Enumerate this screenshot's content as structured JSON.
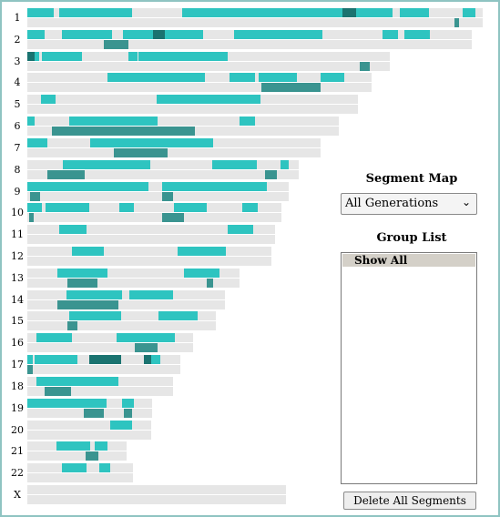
{
  "colors": {
    "primary": "#2ec4c0",
    "secondary": "#3a9490",
    "dark": "#1a7370",
    "track": "#e6e6e6",
    "frame": "#8fc4c2"
  },
  "panel": {
    "segment_map_title": "Segment Map",
    "generation_select": {
      "value": "All Generations"
    },
    "group_list_title": "Group List",
    "group_list_items": [
      "Show All"
    ],
    "delete_button": "Delete All Segments"
  },
  "chromosomes": [
    {
      "label": "1",
      "length": 1.0,
      "top": [
        [
          0.0,
          0.058
        ],
        [
          0.07,
          0.23
        ],
        [
          0.339,
          0.691
        ],
        [
          0.691,
          0.721
        ],
        [
          0.721,
          0.8
        ],
        [
          0.818,
          0.882
        ],
        [
          0.955,
          0.983
        ]
      ],
      "top_dark": [
        [
          0.691,
          0.721
        ]
      ],
      "bottom": [
        [
          0.937,
          0.948
        ]
      ]
    },
    {
      "label": "2",
      "length": 0.975,
      "top": [
        [
          0.0,
          0.037
        ],
        [
          0.075,
          0.185
        ],
        [
          0.21,
          0.275
        ],
        [
          0.275,
          0.302
        ],
        [
          0.302,
          0.386
        ],
        [
          0.453,
          0.647
        ],
        [
          0.78,
          0.815
        ],
        [
          0.827,
          0.882
        ]
      ],
      "top_dark": [
        [
          0.275,
          0.302
        ]
      ],
      "bottom": [
        [
          0.168,
          0.222
        ]
      ]
    },
    {
      "label": "3",
      "length": 0.795,
      "top": [
        [
          0.0,
          0.015
        ],
        [
          0.015,
          0.025
        ],
        [
          0.032,
          0.12
        ],
        [
          0.222,
          0.243
        ],
        [
          0.243,
          0.439
        ]
      ],
      "top_dark": [
        [
          0.0,
          0.015
        ]
      ],
      "bottom": [
        [
          0.73,
          0.752
        ]
      ]
    },
    {
      "label": "4",
      "length": 0.756,
      "top": [
        [
          0.175,
          0.388
        ],
        [
          0.444,
          0.5
        ],
        [
          0.507,
          0.592
        ],
        [
          0.643,
          0.696
        ]
      ],
      "top_dark": [],
      "bottom": [
        [
          0.514,
          0.643
        ]
      ]
    },
    {
      "label": "5",
      "length": 0.725,
      "top": [
        [
          0.03,
          0.061
        ],
        [
          0.284,
          0.512
        ]
      ],
      "top_dark": [],
      "bottom": []
    },
    {
      "label": "6",
      "length": 0.684,
      "top": [
        [
          0.0,
          0.016
        ],
        [
          0.092,
          0.286
        ],
        [
          0.465,
          0.5
        ]
      ],
      "top_dark": [],
      "bottom": [
        [
          0.054,
          0.368
        ]
      ]
    },
    {
      "label": "7",
      "length": 0.643,
      "top": [
        [
          0.0,
          0.043
        ],
        [
          0.137,
          0.406
        ]
      ],
      "top_dark": [],
      "bottom": [
        [
          0.19,
          0.307
        ]
      ]
    },
    {
      "label": "8",
      "length": 0.595,
      "top": [
        [
          0.077,
          0.268
        ],
        [
          0.406,
          0.504
        ],
        [
          0.555,
          0.573
        ]
      ],
      "top_dark": [],
      "bottom": [
        [
          0.043,
          0.124
        ],
        [
          0.521,
          0.546
        ]
      ]
    },
    {
      "label": "9",
      "length": 0.574,
      "top": [
        [
          0.0,
          0.265
        ],
        [
          0.295,
          0.524
        ]
      ],
      "top_dark": [],
      "bottom": [
        [
          0.006,
          0.028
        ],
        [
          0.295,
          0.318
        ]
      ]
    },
    {
      "label": "10",
      "length": 0.557,
      "top": [
        [
          0.0,
          0.032
        ],
        [
          0.04,
          0.135
        ],
        [
          0.202,
          0.235
        ],
        [
          0.322,
          0.394
        ],
        [
          0.472,
          0.505
        ]
      ],
      "top_dark": [],
      "bottom": [
        [
          0.004,
          0.014
        ],
        [
          0.295,
          0.342
        ]
      ]
    },
    {
      "label": "11",
      "length": 0.543,
      "top": [
        [
          0.07,
          0.13
        ],
        [
          0.44,
          0.496
        ]
      ],
      "top_dark": [],
      "bottom": []
    },
    {
      "label": "12",
      "length": 0.536,
      "top": [
        [
          0.098,
          0.168
        ],
        [
          0.329,
          0.436
        ]
      ],
      "top_dark": [],
      "bottom": []
    },
    {
      "label": "13",
      "length": 0.466,
      "top": [
        [
          0.066,
          0.176
        ],
        [
          0.343,
          0.422
        ]
      ],
      "top_dark": [],
      "bottom": [
        [
          0.087,
          0.152
        ],
        [
          0.393,
          0.408
        ]
      ]
    },
    {
      "label": "14",
      "length": 0.433,
      "top": [
        [
          0.086,
          0.207
        ],
        [
          0.224,
          0.32
        ]
      ],
      "top_dark": [],
      "bottom": [
        [
          0.066,
          0.2
        ]
      ]
    },
    {
      "label": "15",
      "length": 0.414,
      "top": [
        [
          0.092,
          0.207
        ],
        [
          0.287,
          0.372
        ]
      ],
      "top_dark": [],
      "bottom": [
        [
          0.087,
          0.108
        ]
      ]
    },
    {
      "label": "16",
      "length": 0.364,
      "top": [
        [
          0.02,
          0.097
        ],
        [
          0.195,
          0.323
        ]
      ],
      "top_dark": [],
      "bottom": [
        [
          0.235,
          0.285
        ]
      ]
    },
    {
      "label": "17",
      "length": 0.335,
      "top": [
        [
          0.0,
          0.011
        ],
        [
          0.015,
          0.108
        ],
        [
          0.136,
          0.206
        ],
        [
          0.255,
          0.27
        ],
        [
          0.27,
          0.292
        ]
      ],
      "top_dark": [
        [
          0.136,
          0.206
        ],
        [
          0.255,
          0.27
        ]
      ],
      "bottom": [
        [
          0.0,
          0.011
        ]
      ]
    },
    {
      "label": "18",
      "length": 0.32,
      "top": [
        [
          0.02,
          0.2
        ]
      ],
      "top_dark": [],
      "bottom": [
        [
          0.037,
          0.095
        ]
      ]
    },
    {
      "label": "19",
      "length": 0.273,
      "top": [
        [
          0.0,
          0.173
        ],
        [
          0.208,
          0.234
        ]
      ],
      "top_dark": [],
      "bottom": [
        [
          0.123,
          0.167
        ],
        [
          0.212,
          0.23
        ]
      ]
    },
    {
      "label": "20",
      "length": 0.271,
      "top": [
        [
          0.182,
          0.23
        ]
      ],
      "top_dark": [],
      "bottom": []
    },
    {
      "label": "21",
      "length": 0.218,
      "top": [
        [
          0.063,
          0.137
        ],
        [
          0.147,
          0.176
        ]
      ],
      "top_dark": [],
      "bottom": [
        [
          0.128,
          0.156
        ]
      ]
    },
    {
      "label": "22",
      "length": 0.232,
      "top": [
        [
          0.076,
          0.13
        ],
        [
          0.158,
          0.182
        ]
      ],
      "top_dark": [],
      "bottom": []
    },
    {
      "label": "X",
      "length": 0.567,
      "top": [],
      "top_dark": [],
      "bottom": []
    }
  ]
}
